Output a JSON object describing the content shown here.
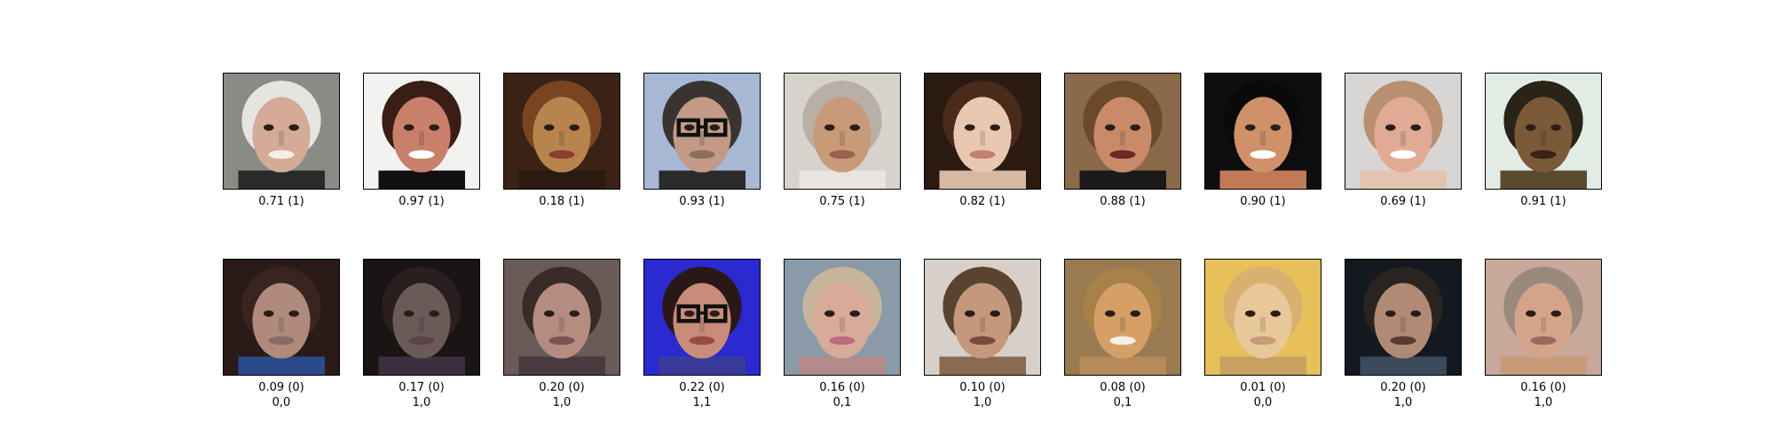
{
  "real_row": {
    "items": [
      {
        "score": "0.71 (1)",
        "bg": "#8a8a86",
        "skin": "#d4aa98",
        "hair": "#e6e4e0",
        "shirt": "#2a2a2a",
        "mouth": "#f4eee6",
        "glasses": false
      },
      {
        "score": "0.97 (1)",
        "bg": "#f2f2f0",
        "skin": "#c9806a",
        "hair": "#3a1e16",
        "shirt": "#111111",
        "mouth": "#ffffff",
        "glasses": false
      },
      {
        "score": "0.18 (1)",
        "bg": "#3a2216",
        "skin": "#b8844e",
        "hair": "#7a4420",
        "shirt": "#2a1a10",
        "mouth": "#8a3e2e",
        "glasses": false
      },
      {
        "score": "0.93 (1)",
        "bg": "#a6b8d4",
        "skin": "#c29a86",
        "hair": "#3a3430",
        "shirt": "#2a2a2a",
        "mouth": "#8a6e5e",
        "glasses": true
      },
      {
        "score": "0.75 (1)",
        "bg": "#d8d2cc",
        "skin": "#c99a7a",
        "hair": "#b8b0a6",
        "shirt": "#e8e4e0",
        "mouth": "#9a6050",
        "glasses": false
      },
      {
        "score": "0.82 (1)",
        "bg": "#2a1a12",
        "skin": "#e8c8b0",
        "hair": "#4a2a1a",
        "shirt": "#d8b8a0",
        "mouth": "#c08070",
        "glasses": false
      },
      {
        "score": "0.88 (1)",
        "bg": "#8a6a4a",
        "skin": "#c98a6a",
        "hair": "#6a4a2a",
        "shirt": "#1a1a1a",
        "mouth": "#6a2a22",
        "glasses": false
      },
      {
        "score": "0.90 (1)",
        "bg": "#0e0e10",
        "skin": "#d0906a",
        "hair": "#0a0a0a",
        "shirt": "#c07a58",
        "mouth": "#ffffff",
        "glasses": false
      },
      {
        "score": "0.69 (1)",
        "bg": "#d8d6d4",
        "skin": "#e0aa94",
        "hair": "#b89070",
        "shirt": "#e4c4b0",
        "mouth": "#ffffff",
        "glasses": false
      },
      {
        "score": "0.91 (1)",
        "bg": "#e0ece4",
        "skin": "#7a5a38",
        "hair": "#2a2418",
        "shirt": "#5a4a30",
        "mouth": "#3a2018",
        "glasses": false
      }
    ]
  },
  "fake_row": {
    "items": [
      {
        "score": "0.09 (0)",
        "label": "0,0",
        "bg": "#2a1a18",
        "skin": "#b08a7a",
        "hair": "#3a2420",
        "shirt": "#2a4a8a",
        "mouth": "#8a6a64",
        "glasses": false
      },
      {
        "score": "0.17 (0)",
        "label": "1,0",
        "bg": "#1a1414",
        "skin": "#6a5a58",
        "hair": "#2a1e20",
        "shirt": "#3a3040",
        "mouth": "#5a4444",
        "glasses": false
      },
      {
        "score": "0.20 (0)",
        "label": "1,0",
        "bg": "#6a5a58",
        "skin": "#b48c80",
        "hair": "#3a2a28",
        "shirt": "#4a3a40",
        "mouth": "#7a5454",
        "glasses": false
      },
      {
        "score": "0.22 (0)",
        "label": "1,1",
        "bg": "#2a2ad0",
        "skin": "#c88c7a",
        "hair": "#2a1818",
        "shirt": "#3a3a9a",
        "mouth": "#9a4a44",
        "glasses": true
      },
      {
        "score": "0.16 (0)",
        "label": "0,1",
        "bg": "#8a9aa8",
        "skin": "#d8aa98",
        "hair": "#c8b49a",
        "shirt": "#b48a8a",
        "mouth": "#c06a80",
        "glasses": false
      },
      {
        "score": "0.10 (0)",
        "label": "1,0",
        "bg": "#d8d0c8",
        "skin": "#c4987c",
        "hair": "#5a4430",
        "shirt": "#8a6a50",
        "mouth": "#7a4a3a",
        "glasses": false
      },
      {
        "score": "0.08 (0)",
        "label": "0,1",
        "bg": "#9a7a50",
        "skin": "#d4a068",
        "hair": "#a8804a",
        "shirt": "#b88a5a",
        "mouth": "#f4eee6",
        "glasses": false
      },
      {
        "score": "0.01 (0)",
        "label": "0,0",
        "bg": "#e8c05a",
        "skin": "#e8c898",
        "hair": "#d8b070",
        "shirt": "#c8a060",
        "mouth": "#c89a78",
        "glasses": false
      },
      {
        "score": "0.20 (0)",
        "label": "1,0",
        "bg": "#141820",
        "skin": "#b08a74",
        "hair": "#2a2420",
        "shirt": "#3a4a5a",
        "mouth": "#5a3a30",
        "glasses": false
      },
      {
        "score": "0.16 (0)",
        "label": "1,0",
        "bg": "#c8a89a",
        "skin": "#d4a48a",
        "hair": "#9a8a7a",
        "shirt": "#c89a7a",
        "mouth": "#9a6a5a",
        "glasses": false
      }
    ]
  }
}
